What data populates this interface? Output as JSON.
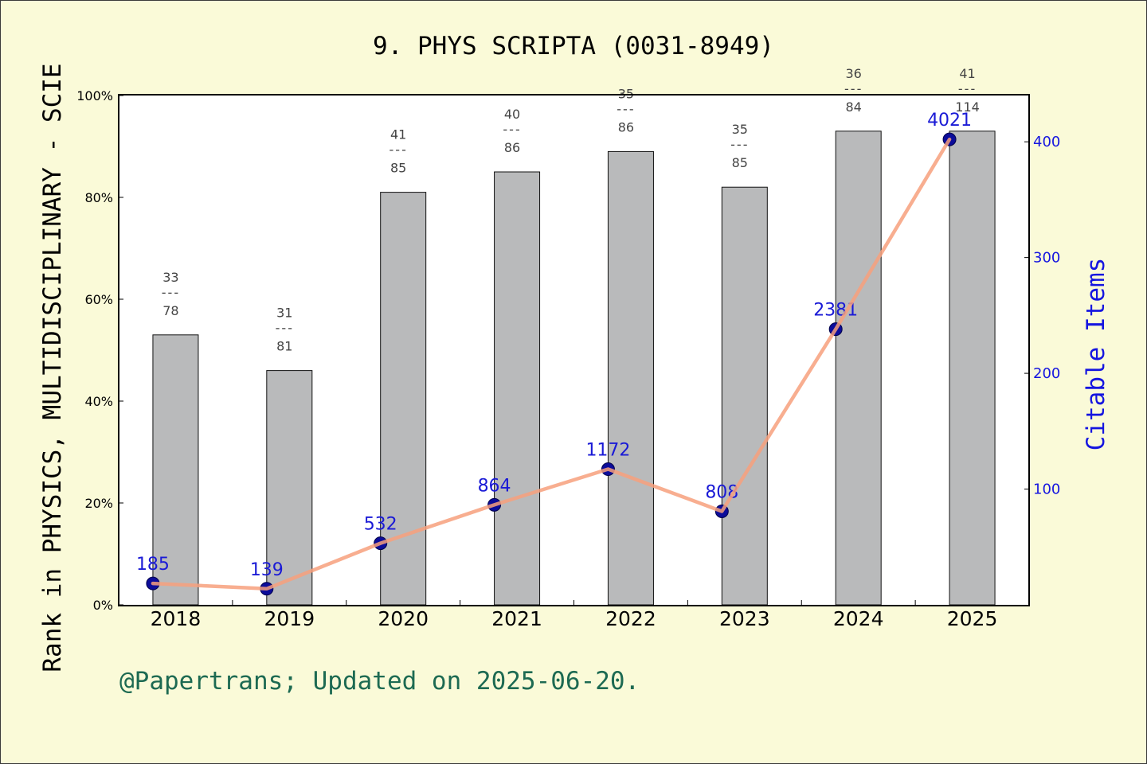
{
  "chart_data": {
    "type": "bar",
    "title": "9. PHYS SCRIPTA (0031-8949)",
    "categories": [
      "2018",
      "2019",
      "2020",
      "2021",
      "2022",
      "2023",
      "2024",
      "2025"
    ],
    "yaxis": {
      "label": "Rank in PHYSICS, MULTIDISCIPLINARY - SCIE",
      "range": [
        0,
        100
      ],
      "ticks": [
        {
          "value": 0,
          "label": "0%"
        },
        {
          "value": 20,
          "label": "20%"
        },
        {
          "value": 40,
          "label": "40%"
        },
        {
          "value": 60,
          "label": "60%"
        },
        {
          "value": 80,
          "label": "80%"
        },
        {
          "value": 100,
          "label": "100%"
        }
      ]
    },
    "y2axis": {
      "label": "Citable Items",
      "range": [
        0,
        440
      ],
      "ticks": [
        {
          "value": 100,
          "label": "100"
        },
        {
          "value": 200,
          "label": "200"
        },
        {
          "value": 300,
          "label": "300"
        },
        {
          "value": 400,
          "label": "400"
        }
      ]
    },
    "series": [
      {
        "type": "bar",
        "axis": "left",
        "values": [
          53,
          46,
          81,
          85,
          89,
          82,
          93,
          93
        ],
        "annotations": [
          {
            "numerator": "33",
            "divider": "---",
            "denominator": "78"
          },
          {
            "numerator": "31",
            "divider": "---",
            "denominator": "81"
          },
          {
            "numerator": "41",
            "divider": "---",
            "denominator": "85"
          },
          {
            "numerator": "40",
            "divider": "---",
            "denominator": "86"
          },
          {
            "numerator": "35",
            "divider": "---",
            "denominator": "86"
          },
          {
            "numerator": "35",
            "divider": "---",
            "denominator": "85"
          },
          {
            "numerator": "36",
            "divider": "---",
            "denominator": "84"
          },
          {
            "numerator": "41",
            "divider": "---",
            "denominator": "114"
          }
        ]
      },
      {
        "type": "line",
        "axis": "right",
        "values": [
          18.5,
          13.9,
          53.2,
          86.4,
          117.2,
          80.8,
          238.1,
          402.1
        ],
        "data_labels": [
          "185",
          "139",
          "532",
          "864",
          "1172",
          "808",
          "2381",
          "4021"
        ]
      }
    ],
    "grid": false,
    "legend": "none"
  },
  "footer": "@Papertrans; Updated on 2025-06-20.",
  "colors": {
    "background": "#fafad8",
    "plot_background": "#ffffff",
    "bar": "#b9babb",
    "line": "#f7a07c",
    "marker": "#0c0c9a",
    "value_label": "#1a1ad6",
    "right_axis": "#1515e0",
    "annotation": "#444444",
    "footer": "#1d6a52"
  }
}
